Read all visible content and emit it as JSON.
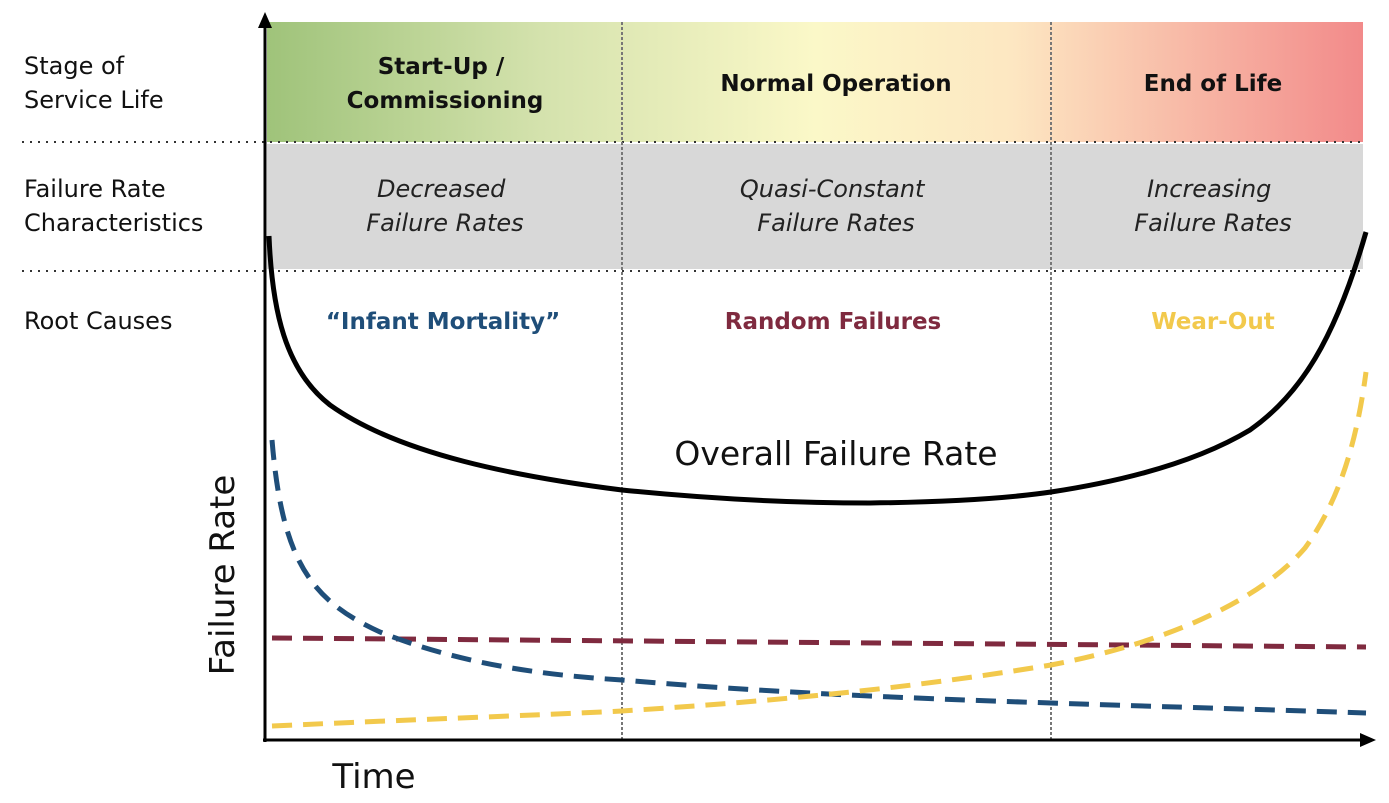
{
  "row_labels": {
    "stage": [
      "Stage of",
      "Service Life"
    ],
    "characteristics": [
      "Failure Rate",
      "Characteristics"
    ],
    "root_causes": "Root Causes"
  },
  "phases": [
    {
      "title": [
        "Start-Up /",
        "Commissioning"
      ],
      "characteristic": [
        "Decreased",
        "Failure Rates"
      ],
      "root_cause": "“Infant Mortality”"
    },
    {
      "title": [
        "Normal Operation"
      ],
      "characteristic": [
        "Quasi-Constant",
        "Failure Rates"
      ],
      "root_cause": "Random Failures"
    },
    {
      "title": [
        "End of Life"
      ],
      "characteristic": [
        "Increasing",
        "Failure Rates"
      ],
      "root_cause": "Wear-Out"
    }
  ],
  "curve_label": "Overall Failure Rate",
  "axes": {
    "x": "Time",
    "y": "Failure Rate"
  },
  "colors": {
    "infant_mortality": "#1f4e79",
    "random_failures": "#7f2a3f",
    "wear_out": "#f2c94c",
    "overall": "#000000",
    "band_gray": "#d8d8d8",
    "gradient": [
      "#9fc37a",
      "#fbf8c8",
      "#f28a8a"
    ]
  }
}
